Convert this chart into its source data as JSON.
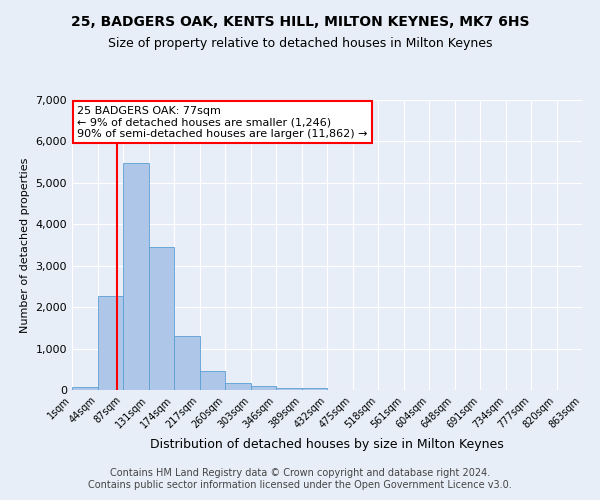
{
  "title": "25, BADGERS OAK, KENTS HILL, MILTON KEYNES, MK7 6HS",
  "subtitle": "Size of property relative to detached houses in Milton Keynes",
  "xlabel": "Distribution of detached houses by size in Milton Keynes",
  "ylabel": "Number of detached properties",
  "footer_line1": "Contains HM Land Registry data © Crown copyright and database right 2024.",
  "footer_line2": "Contains public sector information licensed under the Open Government Licence v3.0.",
  "annotation_title": "25 BADGERS OAK: 77sqm",
  "annotation_line1": "← 9% of detached houses are smaller (1,246)",
  "annotation_line2": "90% of semi-detached houses are larger (11,862) →",
  "bar_values": [
    80,
    2280,
    5480,
    3450,
    1310,
    470,
    160,
    90,
    60,
    40,
    0,
    0,
    0,
    0,
    0,
    0,
    0,
    0,
    0,
    0
  ],
  "bar_labels": [
    "1sqm",
    "44sqm",
    "87sqm",
    "131sqm",
    "174sqm",
    "217sqm",
    "260sqm",
    "303sqm",
    "346sqm",
    "389sqm",
    "432sqm",
    "475sqm",
    "518sqm",
    "561sqm",
    "604sqm",
    "648sqm",
    "691sqm",
    "734sqm",
    "777sqm",
    "820sqm",
    "863sqm"
  ],
  "bar_color": "#aec6e8",
  "bar_edge_color": "#5a9fd4",
  "marker_color": "red",
  "ylim": [
    0,
    7000
  ],
  "yticks": [
    0,
    1000,
    2000,
    3000,
    4000,
    5000,
    6000,
    7000
  ],
  "bg_color": "#e8eef8",
  "plot_bg_color": "#e8eef8",
  "grid_color": "#ffffff",
  "annotation_box_color": "white",
  "annotation_box_edge": "red",
  "title_fontsize": 10,
  "subtitle_fontsize": 9,
  "ylabel_fontsize": 8,
  "xlabel_fontsize": 9,
  "annotation_fontsize": 8,
  "tick_fontsize": 7,
  "ytick_fontsize": 8,
  "footer_fontsize": 7
}
